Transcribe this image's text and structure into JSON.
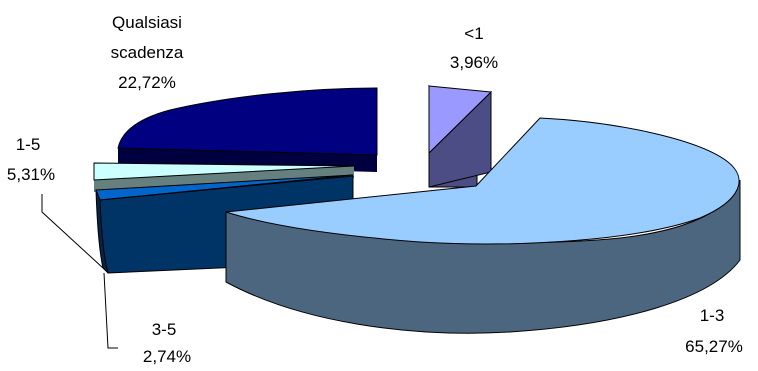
{
  "chart_data": {
    "type": "pie",
    "subtype": "3d-exploded",
    "title": "",
    "slices": [
      {
        "name": "<1",
        "percent_label": "3,96%",
        "value": 3.96,
        "top_color": "#9999ff",
        "side_color": "#4d4d86"
      },
      {
        "name": "1-3",
        "percent_label": "65,27%",
        "value": 65.27,
        "top_color": "#99ccff",
        "side_color": "#4d6680"
      },
      {
        "name": "3-5",
        "percent_label": "2,74%",
        "value": 2.74,
        "top_color": "#0066cc",
        "side_color": "#003366"
      },
      {
        "name": "1-5",
        "percent_label": "5,31%",
        "value": 5.31,
        "top_color": "#ccffff",
        "side_color": "#668080"
      },
      {
        "name": "Qualsiasi scadenza",
        "name_lines": [
          "Qualsiasi",
          "scadenza"
        ],
        "percent_label": "22,72%",
        "value": 22.72,
        "top_color": "#000080",
        "side_color": "#000040"
      }
    ],
    "legend": "none",
    "data_labels": "category-and-percent"
  }
}
